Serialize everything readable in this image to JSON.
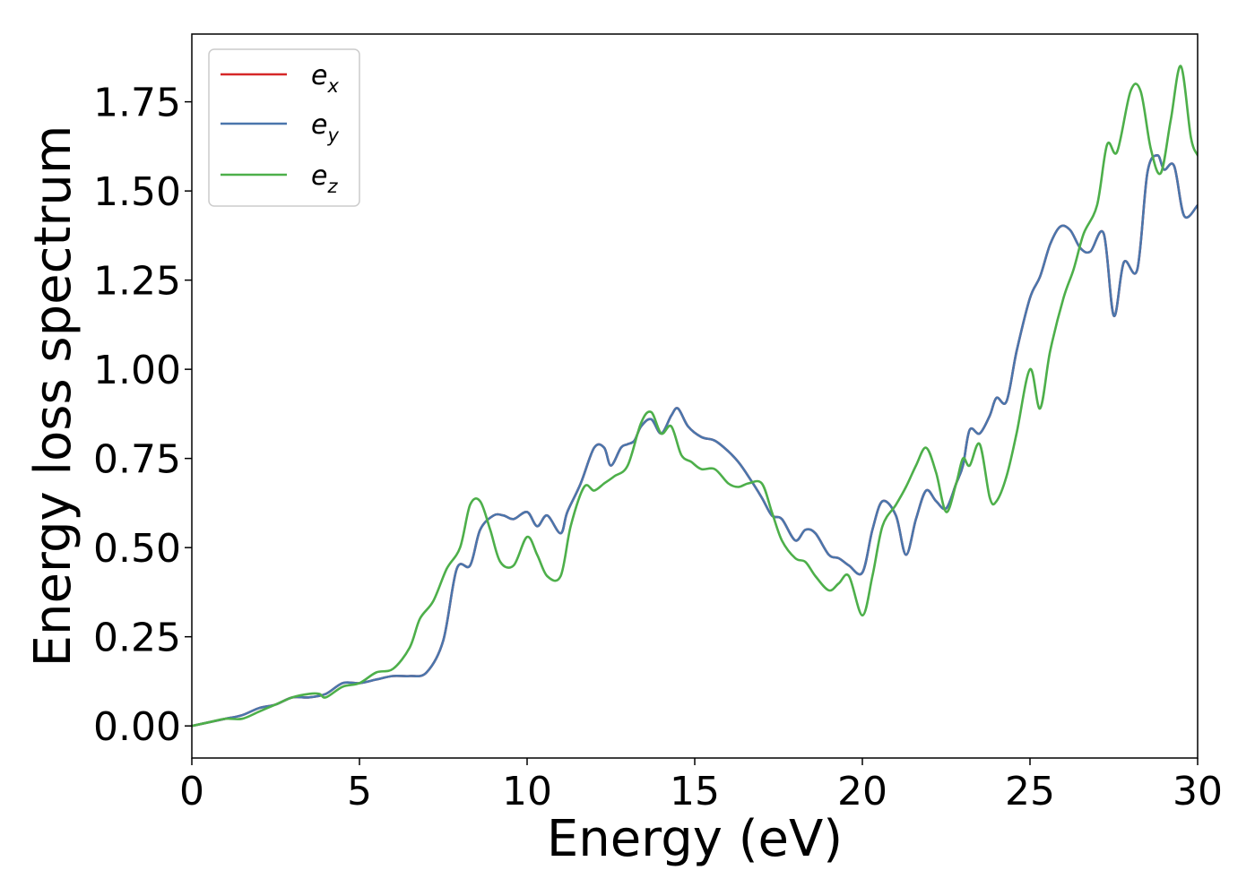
{
  "chart_data": {
    "type": "line",
    "title": "",
    "xlabel": "Energy (eV)",
    "ylabel": "Energy loss spectrum",
    "xlim": [
      0,
      30
    ],
    "ylim": [
      -0.09,
      1.94
    ],
    "xticks": [
      0,
      5,
      10,
      15,
      20,
      25,
      30
    ],
    "yticks": [
      0.0,
      0.25,
      0.5,
      0.75,
      1.0,
      1.25,
      1.5,
      1.75
    ],
    "xtick_labels": [
      "0",
      "5",
      "10",
      "15",
      "20",
      "25",
      "30"
    ],
    "ytick_labels": [
      "0.00",
      "0.25",
      "0.50",
      "0.75",
      "1.00",
      "1.25",
      "1.50",
      "1.75"
    ],
    "grid": false,
    "legend_position": "top-left",
    "series": [
      {
        "name": "e_x",
        "label_base": "e",
        "label_sub": "x",
        "color": "#d62728",
        "x": [
          0,
          0.5,
          1,
          1.5,
          2,
          2.5,
          3,
          3.5,
          4,
          4.5,
          5,
          5.5,
          6,
          6.5,
          7,
          7.5,
          7.9,
          8.3,
          8.6,
          9,
          9.3,
          9.6,
          10,
          10.3,
          10.6,
          11,
          11.2,
          11.6,
          12,
          12.3,
          12.5,
          12.8,
          13,
          13.2,
          13.4,
          13.7,
          14,
          14.3,
          14.5,
          14.8,
          15.2,
          15.6,
          16,
          16.3,
          16.6,
          17,
          17.3,
          17.6,
          18,
          18.3,
          18.6,
          19,
          19.3,
          19.6,
          20,
          20.3,
          20.6,
          21,
          21.3,
          21.6,
          21.9,
          22.2,
          22.5,
          22.8,
          23,
          23.2,
          23.5,
          23.8,
          24,
          24.3,
          24.6,
          25,
          25.3,
          25.6,
          25.9,
          26.2,
          26.5,
          26.8,
          27.2,
          27.5,
          27.8,
          28.2,
          28.5,
          28.8,
          29,
          29.3,
          29.6,
          30
        ],
        "values": [
          0,
          0.01,
          0.02,
          0.03,
          0.05,
          0.06,
          0.08,
          0.08,
          0.09,
          0.12,
          0.12,
          0.13,
          0.14,
          0.14,
          0.15,
          0.24,
          0.44,
          0.45,
          0.55,
          0.59,
          0.59,
          0.58,
          0.6,
          0.56,
          0.59,
          0.54,
          0.6,
          0.68,
          0.78,
          0.78,
          0.73,
          0.78,
          0.79,
          0.8,
          0.84,
          0.86,
          0.82,
          0.87,
          0.89,
          0.84,
          0.81,
          0.8,
          0.77,
          0.74,
          0.7,
          0.64,
          0.59,
          0.58,
          0.52,
          0.55,
          0.54,
          0.48,
          0.47,
          0.45,
          0.43,
          0.55,
          0.63,
          0.59,
          0.48,
          0.58,
          0.66,
          0.63,
          0.61,
          0.68,
          0.73,
          0.83,
          0.82,
          0.87,
          0.92,
          0.91,
          1.05,
          1.2,
          1.26,
          1.35,
          1.4,
          1.39,
          1.34,
          1.33,
          1.38,
          1.15,
          1.3,
          1.28,
          1.55,
          1.6,
          1.56,
          1.57,
          1.43,
          1.46
        ]
      },
      {
        "name": "e_y",
        "label_base": "e",
        "label_sub": "y",
        "color": "#4a76ac",
        "x": [
          0,
          0.5,
          1,
          1.5,
          2,
          2.5,
          3,
          3.5,
          4,
          4.5,
          5,
          5.5,
          6,
          6.5,
          7,
          7.5,
          7.9,
          8.3,
          8.6,
          9,
          9.3,
          9.6,
          10,
          10.3,
          10.6,
          11,
          11.2,
          11.6,
          12,
          12.3,
          12.5,
          12.8,
          13,
          13.2,
          13.4,
          13.7,
          14,
          14.3,
          14.5,
          14.8,
          15.2,
          15.6,
          16,
          16.3,
          16.6,
          17,
          17.3,
          17.6,
          18,
          18.3,
          18.6,
          19,
          19.3,
          19.6,
          20,
          20.3,
          20.6,
          21,
          21.3,
          21.6,
          21.9,
          22.2,
          22.5,
          22.8,
          23,
          23.2,
          23.5,
          23.8,
          24,
          24.3,
          24.6,
          25,
          25.3,
          25.6,
          25.9,
          26.2,
          26.5,
          26.8,
          27.2,
          27.5,
          27.8,
          28.2,
          28.5,
          28.8,
          29,
          29.3,
          29.6,
          30
        ],
        "values": [
          0,
          0.01,
          0.02,
          0.03,
          0.05,
          0.06,
          0.08,
          0.08,
          0.09,
          0.12,
          0.12,
          0.13,
          0.14,
          0.14,
          0.15,
          0.24,
          0.44,
          0.45,
          0.55,
          0.59,
          0.59,
          0.58,
          0.6,
          0.56,
          0.59,
          0.54,
          0.6,
          0.68,
          0.78,
          0.78,
          0.73,
          0.78,
          0.79,
          0.8,
          0.84,
          0.86,
          0.82,
          0.87,
          0.89,
          0.84,
          0.81,
          0.8,
          0.77,
          0.74,
          0.7,
          0.64,
          0.59,
          0.58,
          0.52,
          0.55,
          0.54,
          0.48,
          0.47,
          0.45,
          0.43,
          0.55,
          0.63,
          0.59,
          0.48,
          0.58,
          0.66,
          0.63,
          0.61,
          0.68,
          0.73,
          0.83,
          0.82,
          0.87,
          0.92,
          0.91,
          1.05,
          1.2,
          1.26,
          1.35,
          1.4,
          1.39,
          1.34,
          1.33,
          1.38,
          1.15,
          1.3,
          1.28,
          1.55,
          1.6,
          1.56,
          1.57,
          1.43,
          1.46
        ]
      },
      {
        "name": "e_z",
        "label_base": "e",
        "label_sub": "z",
        "color": "#4daf4a",
        "x": [
          0,
          0.5,
          1,
          1.5,
          2,
          2.5,
          3,
          3.5,
          3.8,
          4,
          4.5,
          5,
          5.5,
          6,
          6.5,
          6.8,
          7.2,
          7.6,
          8,
          8.3,
          8.6,
          8.9,
          9.2,
          9.6,
          10,
          10.3,
          10.6,
          11,
          11.3,
          11.7,
          12,
          12.3,
          12.6,
          13,
          13.4,
          13.7,
          14,
          14.3,
          14.6,
          14.9,
          15.2,
          15.6,
          16,
          16.3,
          16.6,
          17,
          17.3,
          17.6,
          18,
          18.3,
          18.6,
          19,
          19.3,
          19.6,
          20,
          20.3,
          20.6,
          21,
          21.3,
          21.6,
          21.9,
          22.2,
          22.5,
          22.8,
          23,
          23.2,
          23.5,
          23.8,
          24,
          24.3,
          24.6,
          25,
          25.3,
          25.6,
          26,
          26.3,
          26.6,
          27,
          27.3,
          27.6,
          28,
          28.3,
          28.6,
          28.9,
          29.2,
          29.5,
          29.8,
          30
        ],
        "values": [
          0,
          0.01,
          0.02,
          0.02,
          0.04,
          0.06,
          0.08,
          0.09,
          0.09,
          0.08,
          0.11,
          0.12,
          0.15,
          0.16,
          0.22,
          0.3,
          0.35,
          0.44,
          0.5,
          0.62,
          0.63,
          0.55,
          0.46,
          0.45,
          0.53,
          0.48,
          0.42,
          0.42,
          0.56,
          0.67,
          0.66,
          0.68,
          0.7,
          0.73,
          0.85,
          0.88,
          0.82,
          0.84,
          0.76,
          0.74,
          0.72,
          0.72,
          0.68,
          0.67,
          0.68,
          0.68,
          0.6,
          0.52,
          0.47,
          0.46,
          0.42,
          0.38,
          0.4,
          0.42,
          0.31,
          0.42,
          0.56,
          0.62,
          0.67,
          0.73,
          0.78,
          0.71,
          0.6,
          0.68,
          0.75,
          0.73,
          0.79,
          0.64,
          0.63,
          0.7,
          0.82,
          1.0,
          0.89,
          1.05,
          1.2,
          1.28,
          1.38,
          1.46,
          1.63,
          1.61,
          1.78,
          1.78,
          1.62,
          1.55,
          1.7,
          1.85,
          1.65,
          1.6
        ]
      }
    ]
  }
}
